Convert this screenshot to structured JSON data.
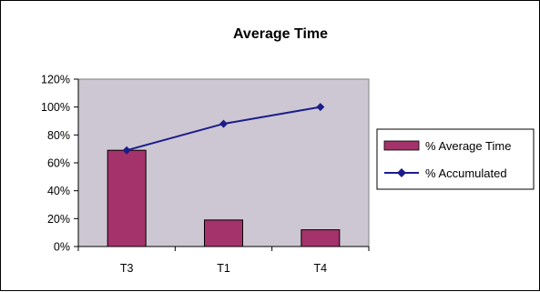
{
  "chart_data": {
    "type": "bar",
    "title": "Average Time",
    "categories": [
      "T3",
      "T1",
      "T4"
    ],
    "ylim": [
      0,
      120
    ],
    "yticks": [
      0,
      20,
      40,
      60,
      80,
      100,
      120
    ],
    "ytick_labels": [
      "0%",
      "20%",
      "40%",
      "60%",
      "80%",
      "100%",
      "120%"
    ],
    "grid": false,
    "legend_position": "right",
    "series": [
      {
        "name": "% Average Time",
        "type": "bar",
        "values": [
          69,
          19,
          12
        ],
        "color": "#a3336a"
      },
      {
        "name": "% Accumulated",
        "type": "line",
        "values": [
          69,
          88,
          100
        ],
        "color": "#1c1c8a"
      }
    ],
    "plot_background": "#ccc7d2"
  }
}
